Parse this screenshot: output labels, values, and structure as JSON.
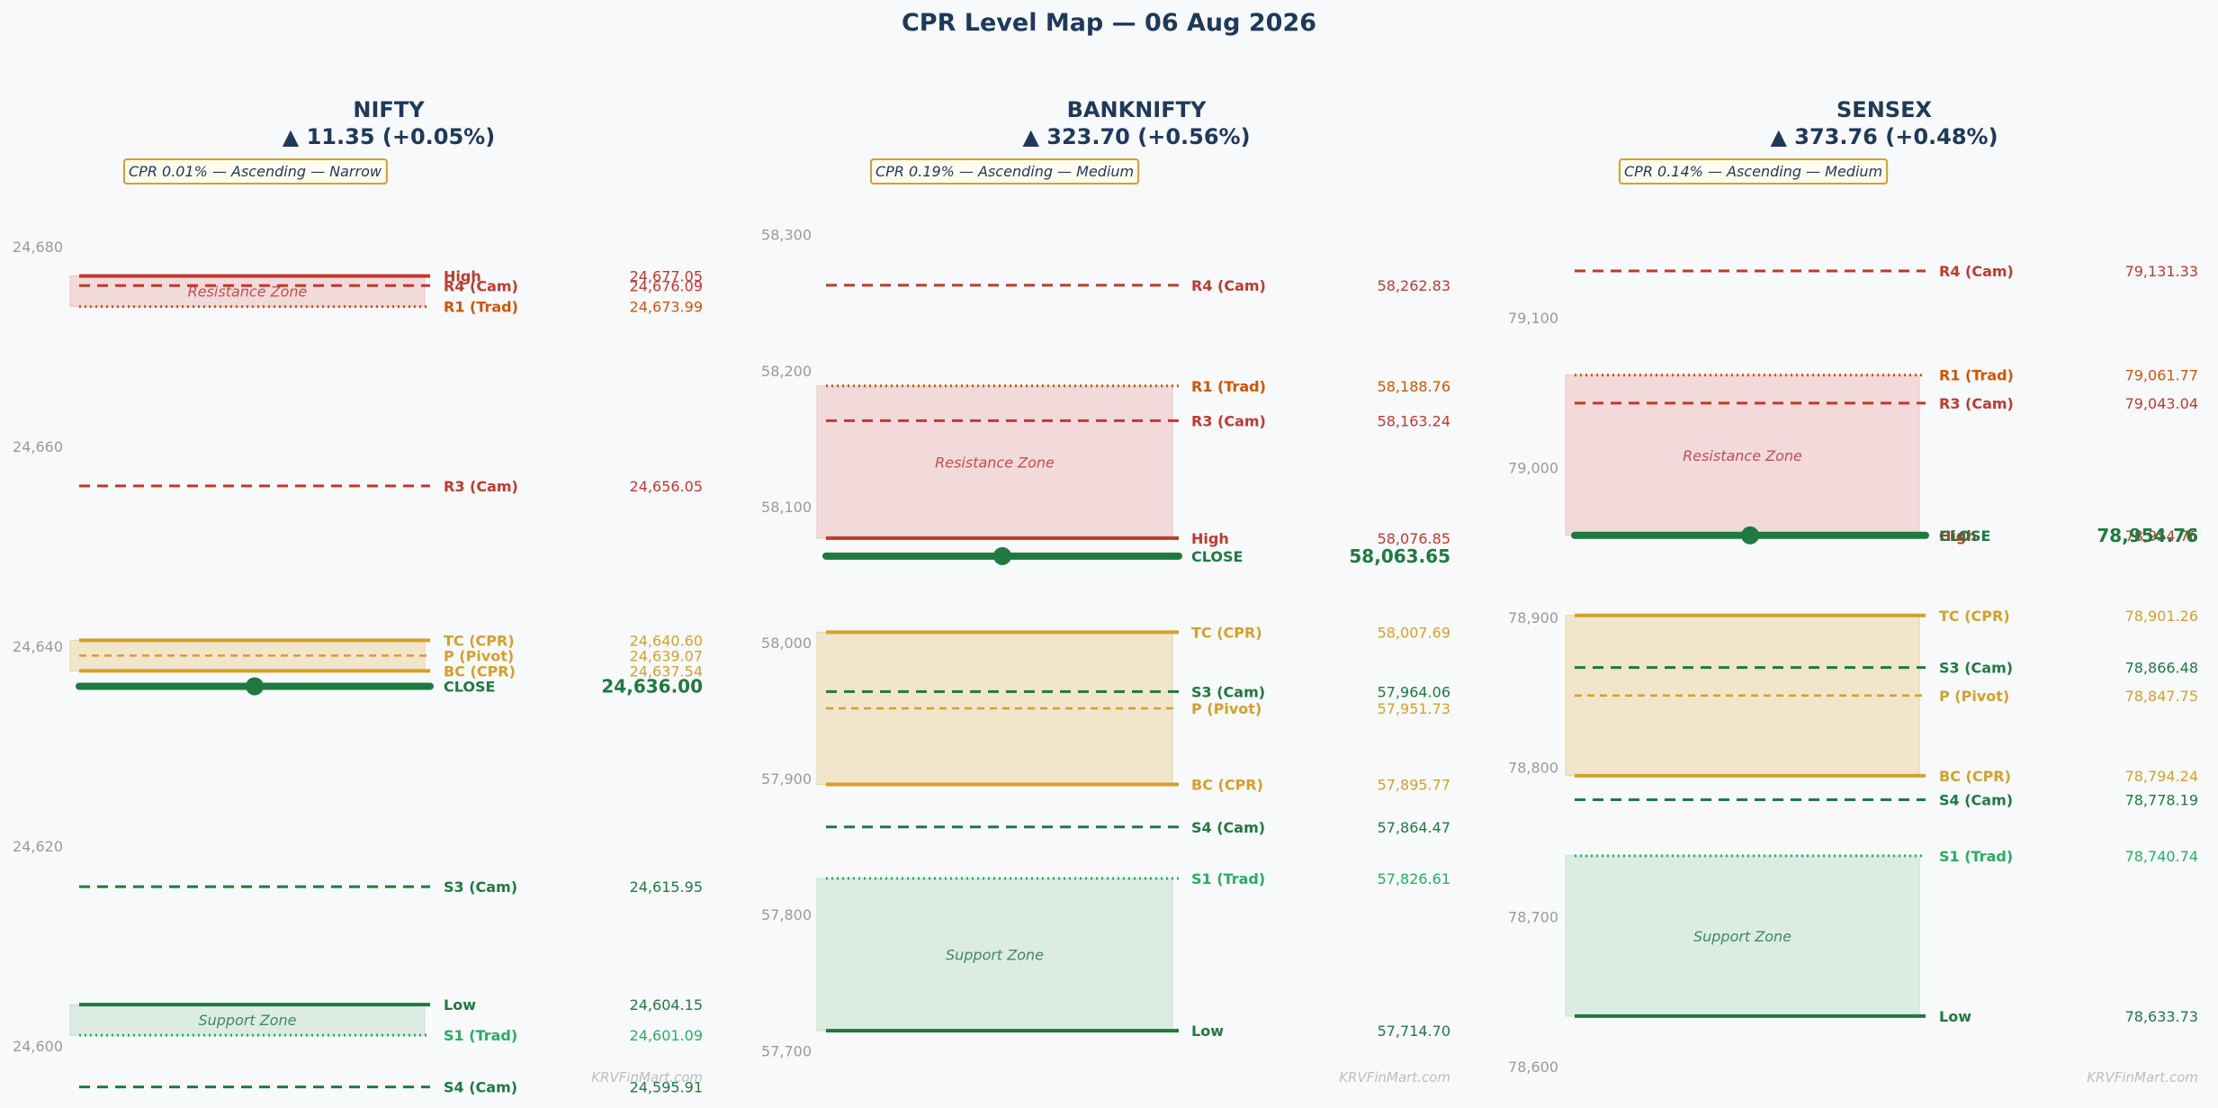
{
  "title": "CPR Level Map — 06 Aug 2026",
  "watermark": "KRVFinMart.com",
  "colors": {
    "resistance": "#c0392b",
    "r1": "#d35400",
    "cpr": "#d4a02a",
    "support": "#1e7a3f",
    "s1": "#27ae60",
    "close": "#1e7a3f",
    "title": "#1d3a5c",
    "tick": "#9a9a9a",
    "zone_resistance": "#f3dada",
    "zone_cpr": "#f1e6cc",
    "zone_support": "#dcece3"
  },
  "chart_data": [
    {
      "type": "level-map",
      "name": "NIFTY",
      "change": "▲ 11.35 (+0.05%)",
      "badge": "CPR 0.01% — Ascending — Narrow",
      "ylim": [
        24597.5,
        24683.5
      ],
      "yticks": [
        24600,
        24620,
        24640,
        24660,
        24680
      ],
      "ytick_labels": [
        "24,600",
        "24,620",
        "24,640",
        "24,660",
        "24,680"
      ],
      "zones": [
        {
          "name": "Resistance Zone",
          "kind": "resistance",
          "from": 24673.99,
          "to": 24677.05
        },
        {
          "name": "",
          "kind": "cpr",
          "from": 24637.54,
          "to": 24640.6
        },
        {
          "name": "Support Zone",
          "kind": "support",
          "from": 24601.09,
          "to": 24604.15
        }
      ],
      "levels": [
        {
          "label": "High",
          "value": 24677.05,
          "value_text": "24,677.05",
          "kind": "resistance",
          "style": "solid"
        },
        {
          "label": "R4 (Cam)",
          "value": 24676.09,
          "value_text": "24,676.09",
          "kind": "resistance",
          "style": "dashed"
        },
        {
          "label": "R1 (Trad)",
          "value": 24673.99,
          "value_text": "24,673.99",
          "kind": "r1",
          "style": "dotted"
        },
        {
          "label": "R3 (Cam)",
          "value": 24656.05,
          "value_text": "24,656.05",
          "kind": "resistance",
          "style": "dashed"
        },
        {
          "label": "TC (CPR)",
          "value": 24640.6,
          "value_text": "24,640.60",
          "kind": "cpr",
          "style": "solid"
        },
        {
          "label": "P (Pivot)",
          "value": 24639.07,
          "value_text": "24,639.07",
          "kind": "cpr",
          "style": "dashed"
        },
        {
          "label": "BC (CPR)",
          "value": 24637.54,
          "value_text": "24,637.54",
          "kind": "cpr",
          "style": "solid"
        },
        {
          "label": "CLOSE",
          "value": 24636.0,
          "value_text": "24,636.00",
          "kind": "close",
          "style": "close"
        },
        {
          "label": "S3 (Cam)",
          "value": 24615.95,
          "value_text": "24,615.95",
          "kind": "support",
          "style": "dashed"
        },
        {
          "label": "Low",
          "value": 24604.15,
          "value_text": "24,604.15",
          "kind": "support",
          "style": "solid"
        },
        {
          "label": "S1 (Trad)",
          "value": 24601.09,
          "value_text": "24,601.09",
          "kind": "s1",
          "style": "dotted"
        },
        {
          "label": "S4 (Cam)",
          "value": 24595.91,
          "value_text": "24,595.91",
          "kind": "support",
          "style": "dashed"
        }
      ]
    },
    {
      "type": "level-map",
      "name": "BANKNIFTY",
      "change": "▲ 323.70 (+0.56%)",
      "badge": "CPR 0.19% — Ascending — Medium",
      "ylim": [
        57685,
        58317
      ],
      "yticks": [
        57700,
        57800,
        57900,
        58000,
        58100,
        58200,
        58300
      ],
      "ytick_labels": [
        "57,700",
        "57,800",
        "57,900",
        "58,000",
        "58,100",
        "58,200",
        "58,300"
      ],
      "zones": [
        {
          "name": "Resistance Zone",
          "kind": "resistance",
          "from": 58076.85,
          "to": 58188.76
        },
        {
          "name": "",
          "kind": "cpr",
          "from": 57895.77,
          "to": 58007.69
        },
        {
          "name": "Support Zone",
          "kind": "support",
          "from": 57714.7,
          "to": 57826.61
        }
      ],
      "levels": [
        {
          "label": "R4 (Cam)",
          "value": 58262.83,
          "value_text": "58,262.83",
          "kind": "resistance",
          "style": "dashed"
        },
        {
          "label": "R1 (Trad)",
          "value": 58188.76,
          "value_text": "58,188.76",
          "kind": "r1",
          "style": "dotted"
        },
        {
          "label": "R3 (Cam)",
          "value": 58163.24,
          "value_text": "58,163.24",
          "kind": "resistance",
          "style": "dashed"
        },
        {
          "label": "High",
          "value": 58076.85,
          "value_text": "58,076.85",
          "kind": "resistance",
          "style": "solid"
        },
        {
          "label": "CLOSE",
          "value": 58063.65,
          "value_text": "58,063.65",
          "kind": "close",
          "style": "close"
        },
        {
          "label": "TC (CPR)",
          "value": 58007.69,
          "value_text": "58,007.69",
          "kind": "cpr",
          "style": "solid"
        },
        {
          "label": "S3 (Cam)",
          "value": 57964.06,
          "value_text": "57,964.06",
          "kind": "support",
          "style": "dashed"
        },
        {
          "label": "P (Pivot)",
          "value": 57951.73,
          "value_text": "57,951.73",
          "kind": "cpr",
          "style": "dashed"
        },
        {
          "label": "BC (CPR)",
          "value": 57895.77,
          "value_text": "57,895.77",
          "kind": "cpr",
          "style": "solid"
        },
        {
          "label": "S4 (Cam)",
          "value": 57864.47,
          "value_text": "57,864.47",
          "kind": "support",
          "style": "dashed"
        },
        {
          "label": "S1 (Trad)",
          "value": 57826.61,
          "value_text": "57,826.61",
          "kind": "s1",
          "style": "dotted"
        },
        {
          "label": "Low",
          "value": 57714.7,
          "value_text": "57,714.70",
          "kind": "support",
          "style": "solid"
        }
      ]
    },
    {
      "type": "level-map",
      "name": "SENSEX",
      "change": "▲ 373.76 (+0.48%)",
      "badge": "CPR 0.14% — Ascending — Medium",
      "ylim": [
        78597,
        79171
      ],
      "yticks": [
        78600,
        78700,
        78800,
        78900,
        79000,
        79100
      ],
      "ytick_labels": [
        "78,600",
        "78,700",
        "78,800",
        "78,900",
        "79,000",
        "79,100"
      ],
      "zones": [
        {
          "name": "Resistance Zone",
          "kind": "resistance",
          "from": 78954.76,
          "to": 79061.77
        },
        {
          "name": "",
          "kind": "cpr",
          "from": 78794.24,
          "to": 78901.26
        },
        {
          "name": "Support Zone",
          "kind": "support",
          "from": 78633.73,
          "to": 78740.74
        }
      ],
      "levels": [
        {
          "label": "R4 (Cam)",
          "value": 79131.33,
          "value_text": "79,131.33",
          "kind": "resistance",
          "style": "dashed"
        },
        {
          "label": "R1 (Trad)",
          "value": 79061.77,
          "value_text": "79,061.77",
          "kind": "r1",
          "style": "dotted"
        },
        {
          "label": "R3 (Cam)",
          "value": 79043.04,
          "value_text": "79,043.04",
          "kind": "resistance",
          "style": "dashed"
        },
        {
          "label": "High",
          "value": 78954.76,
          "value_text": "78,954.76",
          "kind": "resistance",
          "style": "solid"
        },
        {
          "label": "CLOSE",
          "value": 78954.76,
          "value_text": "78,954.76",
          "kind": "close",
          "style": "close"
        },
        {
          "label": "TC (CPR)",
          "value": 78901.26,
          "value_text": "78,901.26",
          "kind": "cpr",
          "style": "solid"
        },
        {
          "label": "S3 (Cam)",
          "value": 78866.48,
          "value_text": "78,866.48",
          "kind": "support",
          "style": "dashed"
        },
        {
          "label": "P (Pivot)",
          "value": 78847.75,
          "value_text": "78,847.75",
          "kind": "cpr",
          "style": "dashed"
        },
        {
          "label": "BC (CPR)",
          "value": 78794.24,
          "value_text": "78,794.24",
          "kind": "cpr",
          "style": "solid"
        },
        {
          "label": "S4 (Cam)",
          "value": 78778.19,
          "value_text": "78,778.19",
          "kind": "support",
          "style": "dashed"
        },
        {
          "label": "S1 (Trad)",
          "value": 78740.74,
          "value_text": "78,740.74",
          "kind": "s1",
          "style": "dotted"
        },
        {
          "label": "Low",
          "value": 78633.73,
          "value_text": "78,633.73",
          "kind": "support",
          "style": "solid"
        }
      ]
    }
  ]
}
